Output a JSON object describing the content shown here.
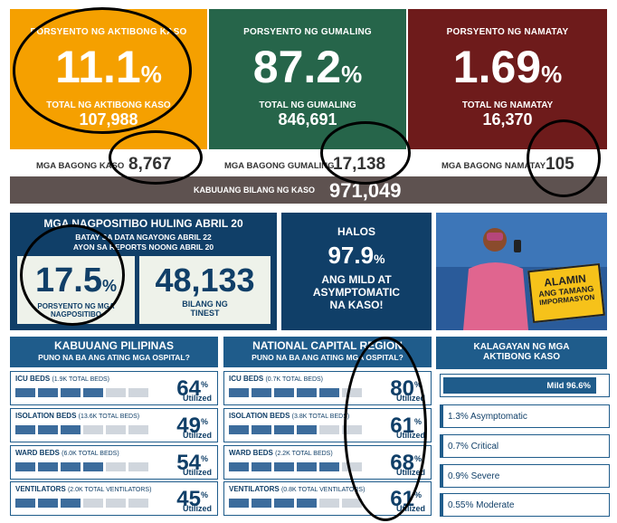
{
  "active": {
    "label": "PORSYENTO NG AKTIBONG KASO",
    "percent": "11.1",
    "pct_sign": "%",
    "total_label": "TOTAL NG AKTIBONG KASO",
    "total": "107,988",
    "new_label": "MGA BAGONG KASO",
    "new": "8,767",
    "color": "#f5a000"
  },
  "recovered": {
    "label": "PORSYENTO NG GUMALING",
    "percent": "87.2",
    "pct_sign": "%",
    "total_label": "TOTAL NG GUMALING",
    "total": "846,691",
    "new_label": "MGA BAGONG GUMALING",
    "new": "17,138",
    "color": "#26654a"
  },
  "deaths": {
    "label": "PORSYENTO NG NAMATAY",
    "percent": "1.69",
    "pct_sign": "%",
    "total_label": "TOTAL NG NAMATAY",
    "total": "16,370",
    "new_label": "MGA BAGONG NAMATAY",
    "new": "105",
    "color": "#6e1b1b"
  },
  "total_cases": {
    "label": "KABUUANG BILANG NG KASO",
    "value": "971,049"
  },
  "positivity": {
    "title": "MGA NAGPOSITIBO HULING ABRIL 20",
    "line2": "BATAY SA DATA NGAYONG ABRIL 22",
    "line3": "AYON SA REPORTS NOONG ABRIL 20",
    "percent": "17.5",
    "pct_sign": "%",
    "percent_label": "PORSYENTO NG MGA NAGPOSITIBO",
    "tested": "48,133",
    "tested_label_1": "BILANG NG",
    "tested_label_2": "TINEST"
  },
  "mild": {
    "line1": "HALOS",
    "percent": "97.9",
    "pct_sign": "%",
    "line2": "ANG MILD AT",
    "line3": "ASYMPTOMATIC",
    "line4": "NA KASO!"
  },
  "promo": {
    "line1": "ALAMIN",
    "line2": "ANG TAMANG",
    "line3": "IMPORMASYON"
  },
  "ph": {
    "title": "KABUUANG PILIPINAS",
    "subtitle": "PUNO NA BA ANG ATING MGA OSPITAL?",
    "rows": [
      {
        "label": "ICU BEDS",
        "detail": "(1.9K TOTAL BEDS)",
        "value": "64",
        "filled": 4
      },
      {
        "label": "ISOLATION BEDS",
        "detail": "(13.6K TOTAL BEDS)",
        "value": "49",
        "filled": 3
      },
      {
        "label": "WARD BEDS",
        "detail": "(6.0K TOTAL BEDS)",
        "value": "54",
        "filled": 4
      },
      {
        "label": "VENTILATORS",
        "detail": "(2.0K TOTAL VENTILATORS)",
        "value": "45",
        "filled": 3
      }
    ]
  },
  "ncr": {
    "title": "NATIONAL CAPITAL REGION",
    "subtitle": "PUNO NA BA ANG ATING MGA OSPITAL?",
    "rows": [
      {
        "label": "ICU BEDS",
        "detail": "(0.7K TOTAL BEDS)",
        "value": "80",
        "filled": 5
      },
      {
        "label": "ISOLATION BEDS",
        "detail": "(3.8K TOTAL BEDS)",
        "value": "61",
        "filled": 4
      },
      {
        "label": "WARD BEDS",
        "detail": "(2.2K TOTAL BEDS)",
        "value": "68",
        "filled": 5
      },
      {
        "label": "VENTILATORS",
        "detail": "(0.8K TOTAL VENTILATORS)",
        "value": "61",
        "filled": 4
      }
    ]
  },
  "utilized_label": "Utilized",
  "pct_small": "%",
  "severity": {
    "title_1": "KALAGAYAN NG MGA",
    "title_2": "AKTIBONG KASO",
    "rows": [
      "Mild 96.6%",
      "1.3% Asymptomatic",
      "0.7% Critical",
      "0.9% Severe",
      "0.55% Moderate"
    ]
  }
}
